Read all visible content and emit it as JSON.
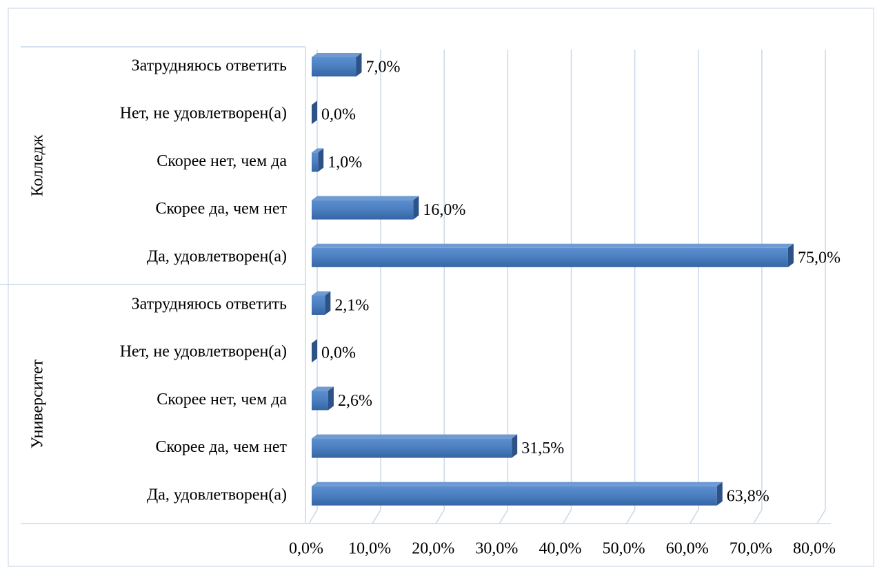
{
  "chart_data": {
    "type": "bar",
    "orientation": "horizontal",
    "color": "#4a7ebf",
    "grid": true,
    "xlim": [
      0,
      80
    ],
    "xticks": [
      {
        "value": 0,
        "label": "0,0%"
      },
      {
        "value": 10,
        "label": "10,0%"
      },
      {
        "value": 20,
        "label": "20,0%"
      },
      {
        "value": 30,
        "label": "30,0%"
      },
      {
        "value": 40,
        "label": "40,0%"
      },
      {
        "value": 50,
        "label": "50,0%"
      },
      {
        "value": 60,
        "label": "60,0%"
      },
      {
        "value": 70,
        "label": "70,0%"
      },
      {
        "value": 80,
        "label": "80,0%"
      }
    ],
    "groups": [
      {
        "name": "Колледж",
        "categories": [
          "Затрудняюсь ответить",
          "Нет, не удовлетворен(а)",
          "Скорее нет, чем да",
          "Скорее да, чем нет",
          "Да, удовлетворен(а)"
        ],
        "values": [
          7.0,
          0.0,
          1.0,
          16.0,
          75.0
        ],
        "value_labels": [
          "7,0%",
          "0,0%",
          "1,0%",
          "16,0%",
          "75,0%"
        ]
      },
      {
        "name": "Университет",
        "categories": [
          "Затрудняюсь ответить",
          "Нет, не удовлетворен(а)",
          "Скорее нет, чем да",
          "Скорее да, чем нет",
          "Да, удовлетворен(а)"
        ],
        "values": [
          2.1,
          0.0,
          2.6,
          31.5,
          63.8
        ],
        "value_labels": [
          "2,1%",
          "0,0%",
          "2,6%",
          "31,5%",
          "63,8%"
        ]
      }
    ]
  }
}
